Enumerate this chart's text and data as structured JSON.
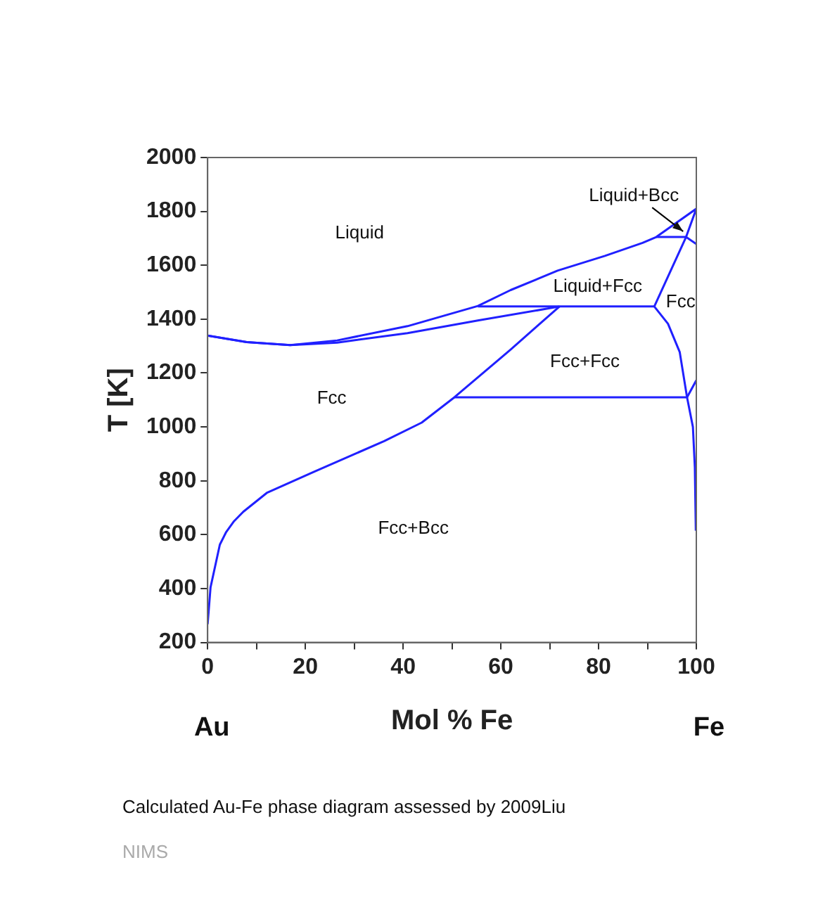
{
  "chart_data": {
    "type": "line",
    "xlabel": "Mol % Fe",
    "ylabel": "T [K]",
    "xlim": [
      0,
      100
    ],
    "ylim": [
      200,
      2000
    ],
    "xticks": [
      0,
      {
        "value": 10,
        "label": null
      },
      20,
      {
        "value": 30,
        "label": null
      },
      40,
      {
        "value": 50,
        "label": null
      },
      60,
      {
        "value": 70,
        "label": null
      },
      80,
      {
        "value": 90,
        "label": null
      },
      100
    ],
    "yticks": [
      200,
      400,
      600,
      800,
      1000,
      1200,
      1400,
      1600,
      1800,
      2000
    ],
    "grid": false,
    "legend": false,
    "marker": "none",
    "line_style": "solid",
    "series": [
      {
        "color": "#2020ff",
        "x": [
          0,
          8,
          16.9,
          26.5,
          40.9,
          55.3,
          62,
          71.6,
          81.3,
          89,
          91.8,
          100
        ],
        "values": [
          1339,
          1315,
          1304,
          1321,
          1374,
          1449,
          1508,
          1580,
          1635,
          1683,
          1705,
          1810
        ]
      },
      {
        "color": "#2020ff",
        "x": [
          0,
          8,
          16.9,
          26.5,
          40.9,
          55.3,
          72
        ],
        "values": [
          1339,
          1315,
          1304,
          1313,
          1348,
          1395,
          1447
        ]
      },
      {
        "color": "#2020ff",
        "x": [
          0,
          0.6,
          2.5,
          3.8,
          5.4,
          7.3,
          12.1,
          21.7,
          36.1,
          43.8,
          50.5,
          62,
          72
        ],
        "values": [
          268,
          405,
          563,
          610,
          650,
          685,
          755,
          833,
          947,
          1016,
          1110,
          1287,
          1447
        ]
      },
      {
        "color": "#2020ff",
        "x": [
          55.3,
          91.4
        ],
        "values": [
          1447,
          1447
        ]
      },
      {
        "color": "#2020ff",
        "x": [
          50.5,
          98.1
        ],
        "values": [
          1110,
          1110
        ]
      },
      {
        "color": "#2020ff",
        "x": [
          91.8,
          97.9
        ],
        "values": [
          1705,
          1705
        ]
      },
      {
        "color": "#2020ff",
        "x": [
          91.4,
          97.9,
          100
        ],
        "values": [
          1447,
          1705,
          1810
        ]
      },
      {
        "color": "#2020ff",
        "x": [
          97.9,
          100
        ],
        "values": [
          1705,
          1679
        ]
      },
      {
        "color": "#2020ff",
        "x": [
          91.4,
          94.2,
          96.6,
          98.1,
          99.3,
          99.7,
          99.9
        ],
        "values": [
          1447,
          1383,
          1278,
          1110,
          1000,
          850,
          615
        ]
      },
      {
        "color": "#2020ff",
        "x": [
          98.1,
          100
        ],
        "values": [
          1110,
          1173
        ]
      }
    ],
    "annotations": [
      "Au",
      "Fe",
      "Calculated Au-Fe phase diagram assessed by 2009Liu",
      "NIMS",
      "Liquid",
      "Fcc",
      "Fcc+Bcc",
      "Liquid+Fcc",
      "Fcc+Fcc",
      "Fcc",
      {
        "text": "Liquid+Bcc",
        "x": 95,
        "y": 1710
      }
    ]
  }
}
